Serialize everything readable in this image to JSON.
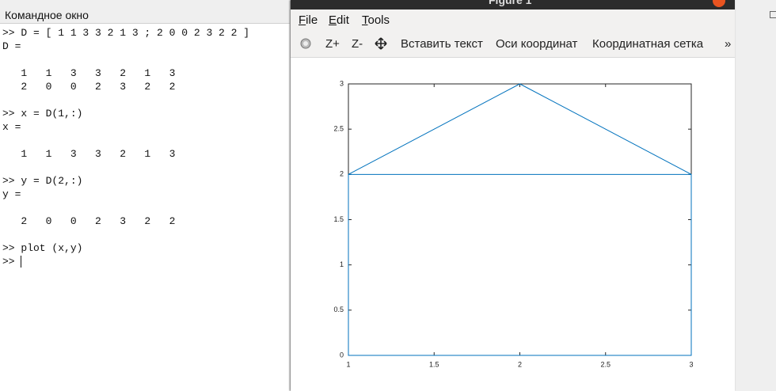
{
  "console": {
    "title": "Командное окно",
    "entries": [
      {
        "input": ">> D = [ 1 1 3 3 2 1 3 ; 2 0 0 2 3 2 2 ]",
        "name": "D =",
        "rows": [
          "   1   1   3   3   2   1   3",
          "   2   0   0   2   3   2   2"
        ]
      },
      {
        "input": ">> x = D(1,:)",
        "name": "x =",
        "rows": [
          "   1   1   3   3   2   1   3"
        ]
      },
      {
        "input": ">> y = D(2,:)",
        "name": "y =",
        "rows": [
          "   2   0   0   2   3   2   2"
        ]
      }
    ],
    "last_command": ">> plot (x,y)",
    "prompt": ">>"
  },
  "figure": {
    "title": "Figure 1",
    "menu": [
      "File",
      "Edit",
      "Tools"
    ],
    "toolbar": [
      "Z+",
      "Z-",
      "Вставить текст",
      "Оси координат",
      "Координатная сетка",
      "»"
    ]
  },
  "chart_data": {
    "type": "line",
    "x": [
      1,
      1,
      3,
      3,
      2,
      1,
      3
    ],
    "values": [
      2,
      0,
      0,
      2,
      3,
      2,
      2
    ],
    "color": "#0072bd",
    "xlim": [
      1,
      3
    ],
    "xticks": [
      1,
      1.5,
      2,
      2.5,
      3
    ],
    "ylim": [
      0,
      3
    ],
    "yticks": [
      0,
      0.5,
      1,
      1.5,
      2,
      2.5,
      3
    ],
    "grid": false
  }
}
